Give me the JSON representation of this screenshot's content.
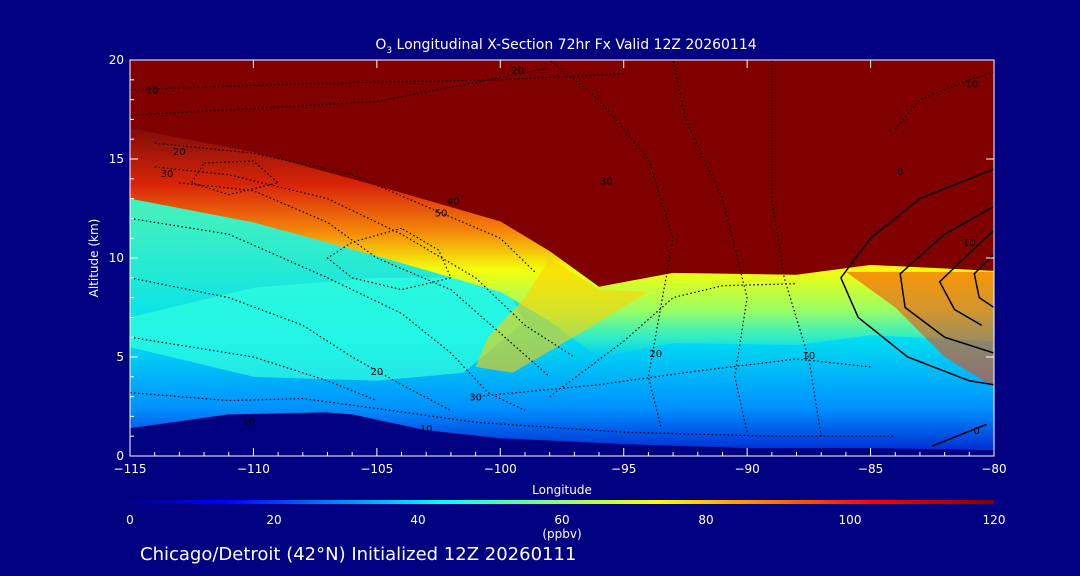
{
  "chart_data": {
    "type": "heatmap",
    "title_main": "O",
    "title_sub": "3",
    "title_rest": " Longitudinal X-Section 72hr  Fx Valid 12Z 20260114",
    "xlabel": "Longitude",
    "ylabel": "Altitude (km)",
    "x_range": [
      -115,
      -80
    ],
    "y_range": [
      0,
      20
    ],
    "x_ticks": [
      -115,
      -110,
      -105,
      -100,
      -95,
      -90,
      -85,
      -80
    ],
    "x_tick_labels": [
      "−115",
      "−110",
      "−105",
      "−100",
      "−95",
      "−90",
      "−85",
      "−80"
    ],
    "y_ticks": [
      0,
      5,
      10,
      15,
      20
    ],
    "y_tick_labels": [
      "0",
      "5",
      "10",
      "15",
      "20"
    ],
    "colorbar": {
      "range": [
        0,
        120
      ],
      "ticks": [
        0,
        20,
        40,
        60,
        80,
        100,
        120
      ],
      "tick_labels": [
        "0",
        "20",
        "40",
        "60",
        "80",
        "100",
        "120"
      ],
      "units": "(ppbv)"
    },
    "surface_km": [
      [
        -115,
        1.4
      ],
      [
        -111,
        2.1
      ],
      [
        -107,
        2.2
      ],
      [
        -106,
        2.1
      ],
      [
        -103,
        1.3
      ],
      [
        -100,
        0.9
      ],
      [
        -95,
        0.6
      ],
      [
        -90,
        0.4
      ],
      [
        -85,
        0.4
      ],
      [
        -80,
        0.3
      ]
    ],
    "tropopause_km": [
      [
        -115,
        16.2
      ],
      [
        -110,
        15.0
      ],
      [
        -105,
        13.3
      ],
      [
        -100,
        11.5
      ],
      [
        -98,
        10.0
      ],
      [
        -96,
        8.2
      ],
      [
        -93,
        8.9
      ],
      [
        -88,
        8.8
      ],
      [
        -85,
        9.3
      ],
      [
        -80,
        9.0
      ]
    ],
    "contour_labels": [
      {
        "text": "10",
        "lon": -114.1,
        "alt": 18.3
      },
      {
        "text": "20",
        "lon": -113.0,
        "alt": 15.2
      },
      {
        "text": "30",
        "lon": -113.5,
        "alt": 14.1
      },
      {
        "text": "20",
        "lon": -99.3,
        "alt": 19.3
      },
      {
        "text": "30",
        "lon": -95.7,
        "alt": 13.7
      },
      {
        "text": "40",
        "lon": -101.9,
        "alt": 12.7
      },
      {
        "text": "50",
        "lon": -102.4,
        "alt": 12.1
      },
      {
        "text": "10",
        "lon": -80.9,
        "alt": 18.6
      },
      {
        "text": "20",
        "lon": -105.0,
        "alt": 4.1
      },
      {
        "text": "30",
        "lon": -101.0,
        "alt": 2.8
      },
      {
        "text": "10",
        "lon": -110.2,
        "alt": 1.6
      },
      {
        "text": "10",
        "lon": -103.0,
        "alt": 1.2
      },
      {
        "text": "20",
        "lon": -93.7,
        "alt": 5.0
      },
      {
        "text": "10",
        "lon": -87.5,
        "alt": 4.9
      },
      {
        "text": "0",
        "lon": -83.8,
        "alt": 14.2
      },
      {
        "text": "10",
        "lon": -81.0,
        "alt": 10.6
      },
      {
        "text": "0",
        "lon": -80.7,
        "alt": 1.1
      }
    ]
  },
  "footer": {
    "caption": "Chicago/Detroit (42°N) Initialized 12Z 20260111"
  }
}
